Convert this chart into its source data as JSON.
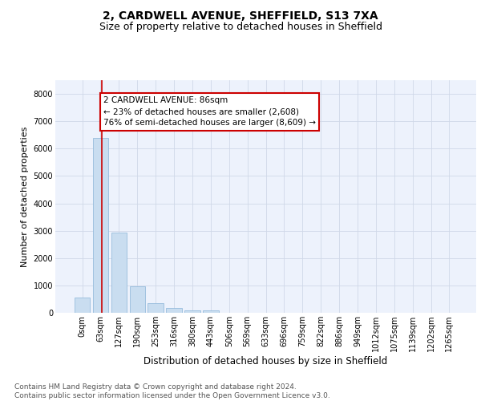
{
  "title_line1": "2, CARDWELL AVENUE, SHEFFIELD, S13 7XA",
  "title_line2": "Size of property relative to detached houses in Sheffield",
  "xlabel": "Distribution of detached houses by size in Sheffield",
  "ylabel": "Number of detached properties",
  "bar_color": "#c9ddf0",
  "bar_edgecolor": "#8ab4d8",
  "categories": [
    "0sqm",
    "63sqm",
    "127sqm",
    "190sqm",
    "253sqm",
    "316sqm",
    "380sqm",
    "443sqm",
    "506sqm",
    "569sqm",
    "633sqm",
    "696sqm",
    "759sqm",
    "822sqm",
    "886sqm",
    "949sqm",
    "1012sqm",
    "1075sqm",
    "1139sqm",
    "1202sqm",
    "1265sqm"
  ],
  "values": [
    570,
    6400,
    2920,
    975,
    350,
    165,
    100,
    80,
    0,
    0,
    0,
    0,
    0,
    0,
    0,
    0,
    0,
    0,
    0,
    0,
    0
  ],
  "annotation_text": "2 CARDWELL AVENUE: 86sqm\n← 23% of detached houses are smaller (2,608)\n76% of semi-detached houses are larger (8,609) →",
  "annotation_box_facecolor": "#ffffff",
  "annotation_box_edgecolor": "#cc0000",
  "vline_color": "#cc0000",
  "vline_x": 1.07,
  "ylim": [
    0,
    8500
  ],
  "yticks": [
    0,
    1000,
    2000,
    3000,
    4000,
    5000,
    6000,
    7000,
    8000
  ],
  "grid_color": "#d0d8e8",
  "background_color": "#edf2fc",
  "footer_text": "Contains HM Land Registry data © Crown copyright and database right 2024.\nContains public sector information licensed under the Open Government Licence v3.0.",
  "title_fontsize": 10,
  "subtitle_fontsize": 9,
  "ylabel_fontsize": 8,
  "xlabel_fontsize": 8.5,
  "tick_fontsize": 7,
  "annotation_fontsize": 7.5,
  "footer_fontsize": 6.5
}
